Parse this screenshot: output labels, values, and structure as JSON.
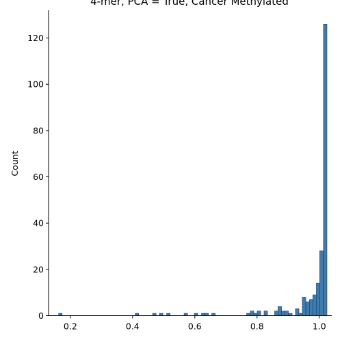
{
  "chart_data": {
    "type": "bar",
    "title": "4-mer, PCA = True, Cancer Methylated",
    "xlabel": "",
    "ylabel": "Count",
    "xlim": [
      0.13,
      1.04
    ],
    "ylim": [
      0,
      132
    ],
    "xticks": [
      {
        "value": 0.2,
        "label": "0.2"
      },
      {
        "value": 0.4,
        "label": "0.4"
      },
      {
        "value": 0.6,
        "label": "0.6"
      },
      {
        "value": 0.8,
        "label": "0.8"
      },
      {
        "value": 1.0,
        "label": "1.0"
      }
    ],
    "yticks": [
      {
        "value": 0,
        "label": "0"
      },
      {
        "value": 20,
        "label": "20"
      },
      {
        "value": 40,
        "label": "40"
      },
      {
        "value": 60,
        "label": "60"
      },
      {
        "value": 80,
        "label": "80"
      },
      {
        "value": 100,
        "label": "100"
      },
      {
        "value": 120,
        "label": "120"
      }
    ],
    "bin_width": 0.0112,
    "bins": [
      {
        "x": 0.168,
        "count": 1
      },
      {
        "x": 0.414,
        "count": 1
      },
      {
        "x": 0.47,
        "count": 1
      },
      {
        "x": 0.492,
        "count": 1
      },
      {
        "x": 0.515,
        "count": 1
      },
      {
        "x": 0.571,
        "count": 1
      },
      {
        "x": 0.604,
        "count": 1
      },
      {
        "x": 0.627,
        "count": 1
      },
      {
        "x": 0.638,
        "count": 1
      },
      {
        "x": 0.66,
        "count": 1
      },
      {
        "x": 0.772,
        "count": 1
      },
      {
        "x": 0.784,
        "count": 2
      },
      {
        "x": 0.795,
        "count": 1
      },
      {
        "x": 0.806,
        "count": 2
      },
      {
        "x": 0.828,
        "count": 2
      },
      {
        "x": 0.862,
        "count": 2
      },
      {
        "x": 0.873,
        "count": 4
      },
      {
        "x": 0.884,
        "count": 2
      },
      {
        "x": 0.895,
        "count": 2
      },
      {
        "x": 0.907,
        "count": 1
      },
      {
        "x": 0.929,
        "count": 3
      },
      {
        "x": 0.94,
        "count": 1
      },
      {
        "x": 0.951,
        "count": 8
      },
      {
        "x": 0.963,
        "count": 6
      },
      {
        "x": 0.974,
        "count": 7
      },
      {
        "x": 0.985,
        "count": 9
      },
      {
        "x": 0.996,
        "count": 14
      },
      {
        "x": 1.007,
        "count": 28
      },
      {
        "x": 1.019,
        "count": 126
      }
    ],
    "grid": false,
    "legend": "none"
  }
}
